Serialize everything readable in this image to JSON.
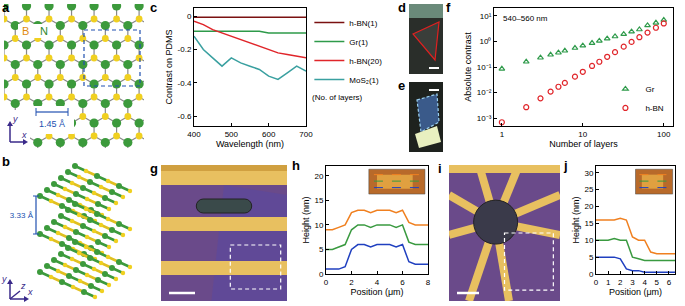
{
  "panels": [
    {
      "letter": "a",
      "type": "diagram",
      "boron": "B",
      "nitrogen": "N",
      "bond": "1.45 Å",
      "axes": [
        "x",
        "y"
      ]
    },
    {
      "letter": "b",
      "type": "diagram",
      "spacing": "3.33 Å",
      "axes": [
        "x",
        "y",
        "z"
      ]
    },
    {
      "letter": "d",
      "type": "image"
    },
    {
      "letter": "e",
      "type": "image"
    },
    {
      "letter": "g",
      "type": "image"
    },
    {
      "letter": "i",
      "type": "image"
    }
  ],
  "chart_data": [
    {
      "panel": "c",
      "type": "line",
      "x_label": "Wavelength (nm)",
      "y_label": "Contrast on PDMS",
      "x": [
        400,
        425,
        450,
        475,
        500,
        525,
        550,
        575,
        600,
        625,
        650,
        675,
        700
      ],
      "series": [
        {
          "name": "h-BN(1)",
          "color": "#7a1010",
          "values": [
            -0.005,
            -0.005,
            -0.005,
            -0.005,
            -0.005,
            -0.005,
            -0.005,
            -0.005,
            -0.005,
            -0.005,
            -0.005,
            -0.005,
            -0.005
          ]
        },
        {
          "name": "Gr(1)",
          "color": "#2e9a4a",
          "values": [
            -0.09,
            -0.09,
            -0.09,
            -0.09,
            -0.09,
            -0.09,
            -0.09,
            -0.09,
            -0.1,
            -0.1,
            -0.1,
            -0.1,
            -0.1
          ]
        },
        {
          "name": "h-BN(20)",
          "color": "#e0252a",
          "values": [
            -0.03,
            -0.05,
            -0.08,
            -0.1,
            -0.12,
            -0.14,
            -0.16,
            -0.18,
            -0.2,
            -0.22,
            -0.23,
            -0.24,
            -0.25
          ]
        },
        {
          "name": "MoS₂(1)",
          "color": "#3aa0a0",
          "values": [
            -0.12,
            -0.2,
            -0.25,
            -0.3,
            -0.25,
            -0.28,
            -0.3,
            -0.32,
            -0.36,
            -0.38,
            -0.34,
            -0.3,
            -0.33
          ]
        }
      ],
      "xlim": [
        400,
        700
      ],
      "xticks": [
        400,
        500,
        600,
        700
      ],
      "ylim": [
        -0.66,
        0.05
      ],
      "yticks": [
        0,
        -0.2,
        -0.4,
        -0.6
      ],
      "legend": "right",
      "annotations": [
        "(No. of layers)"
      ]
    },
    {
      "panel": "f",
      "type": "scatter",
      "x_label": "Number of layers",
      "y_label": "Absolute contrast",
      "log": true,
      "x": [
        1,
        2,
        3,
        4,
        5,
        6,
        8,
        10,
        13,
        16,
        20,
        25,
        32,
        40,
        50,
        63,
        80,
        100
      ],
      "series": [
        {
          "name": "Gr",
          "color": "#2e9a4a",
          "marker": "triangle",
          "values": [
            0.085,
            0.16,
            0.23,
            0.3,
            0.36,
            0.43,
            0.55,
            0.68,
            0.86,
            1.04,
            1.27,
            1.55,
            1.9,
            2.4,
            2.9,
            4.2,
            5.3,
            6.8
          ]
        },
        {
          "name": "h-BN",
          "color": "#e0252a",
          "marker": "circle",
          "values": [
            0.0007,
            0.0027,
            0.006,
            0.011,
            0.017,
            0.024,
            0.042,
            0.065,
            0.11,
            0.16,
            0.25,
            0.38,
            0.62,
            0.95,
            1.45,
            2.2,
            3.4,
            5.0
          ]
        }
      ],
      "xlim": [
        0.8,
        130
      ],
      "xticks": [
        1,
        10,
        100
      ],
      "ylim": [
        0.0005,
        20
      ],
      "yticks": [
        {
          "value": 0.001,
          "label": "10⁻³"
        },
        {
          "value": 0.01,
          "label": "10⁻²"
        },
        {
          "value": 0.1,
          "label": "10⁻¹"
        },
        {
          "value": 1,
          "label": "10⁰"
        },
        {
          "value": 10,
          "label": "10¹"
        }
      ],
      "legend": "lower right",
      "annotations": [
        "540–560 nm"
      ]
    },
    {
      "panel": "h",
      "type": "line",
      "x_label": "Position (μm)",
      "y_label": "Height (nm)",
      "x": [
        0,
        0.5,
        1,
        1.5,
        2,
        2.5,
        3,
        3.5,
        4,
        4.5,
        5,
        5.5,
        6,
        6.5,
        7,
        7.5,
        8
      ],
      "series": [
        {
          "color": "#f08020",
          "values": [
            9,
            9,
            9.5,
            10,
            12.5,
            13,
            13,
            12.5,
            13,
            13,
            13,
            12.5,
            13,
            10.5,
            10,
            10,
            10
          ]
        },
        {
          "color": "#3a9a40",
          "values": [
            5,
            5,
            5.5,
            6,
            9,
            10,
            10,
            9.5,
            10,
            10,
            10,
            9.5,
            10,
            6.5,
            6,
            6,
            6
          ]
        },
        {
          "color": "#2040c0",
          "values": [
            1,
            1,
            1,
            1.5,
            5,
            6,
            6,
            5.5,
            6,
            6,
            6,
            5.5,
            6,
            2.5,
            2,
            2,
            2
          ]
        }
      ],
      "xlim": [
        0,
        8
      ],
      "xticks": [
        0,
        2,
        4,
        6,
        8
      ],
      "ylim": [
        0,
        22
      ],
      "yticks": [
        0,
        5,
        10,
        15,
        20
      ]
    },
    {
      "panel": "j",
      "type": "line",
      "x_label": "Position (μm)",
      "y_label": "Height (nm)",
      "x": [
        0,
        0.5,
        1,
        1.5,
        2,
        2.5,
        3,
        3.5,
        4,
        4.5,
        5,
        5.5,
        6,
        6.5
      ],
      "series": [
        {
          "color": "#f08020",
          "values": [
            16,
            16,
            16,
            16,
            16.5,
            16,
            11,
            10,
            10,
            6.5,
            6,
            6,
            6,
            6
          ]
        },
        {
          "color": "#3a9a40",
          "values": [
            10,
            10,
            10,
            10.5,
            10,
            10,
            5,
            4.5,
            4,
            4,
            4,
            4,
            4,
            4
          ]
        },
        {
          "color": "#2040c0",
          "values": [
            5,
            5,
            5,
            5,
            4.5,
            1.5,
            1,
            1,
            0.5,
            0.5,
            0.5,
            0.5,
            0.5,
            0.5
          ]
        }
      ],
      "xlim": [
        0,
        6.5
      ],
      "xticks": [
        0,
        1,
        2,
        3,
        4,
        5,
        6
      ],
      "ylim": [
        0,
        32
      ],
      "yticks": [
        0,
        5,
        10,
        15,
        20,
        25,
        30
      ]
    }
  ]
}
